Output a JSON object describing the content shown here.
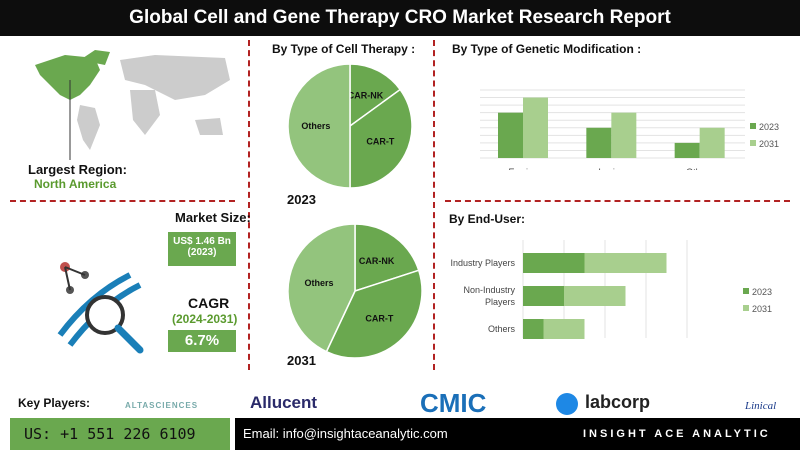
{
  "header": {
    "title": "Global Cell and Gene Therapy CRO Market Research Report"
  },
  "region": {
    "label": "Largest Region:",
    "value": "North America"
  },
  "market": {
    "label": "Market Size:",
    "value": "US$ 1.46 Bn",
    "year": "(2023)"
  },
  "cagr": {
    "label": "CAGR",
    "period": "(2024-2031)",
    "value": "6.7%"
  },
  "colors": {
    "dark_green": "#6aa84f",
    "light_green": "#a8cf8e",
    "pie_mid": "#93c47d",
    "accent_red": "#b22222"
  },
  "chart_data": [
    {
      "type": "pie",
      "title": "By  Type of Cell Therapy :",
      "year_label": "2023",
      "slices": [
        {
          "label": "CAR-NK",
          "value": 15
        },
        {
          "label": "CAR-T",
          "value": 35
        },
        {
          "label": "Others",
          "value": 50
        }
      ]
    },
    {
      "type": "pie",
      "year_label": "2031",
      "slices": [
        {
          "label": "CAR-NK",
          "value": 20
        },
        {
          "label": "CAR-T",
          "value": 37
        },
        {
          "label": "Others",
          "value": 43
        }
      ]
    },
    {
      "type": "bar",
      "title": "By  Type of Genetic Modification :",
      "categories": [
        "Ex vivo",
        "In vivo",
        "Others"
      ],
      "series": [
        {
          "name": "2023",
          "values": [
            6,
            4,
            2
          ]
        },
        {
          "name": "2031",
          "values": [
            8,
            6,
            4
          ]
        }
      ],
      "ylim": [
        0,
        9
      ],
      "grid": true,
      "legend": "right"
    },
    {
      "type": "bar",
      "orientation": "horizontal-stacked",
      "title": "By End-User:",
      "categories": [
        "Industry Players",
        "Non-Industry Players",
        "Others"
      ],
      "series": [
        {
          "name": "2023",
          "values": [
            3,
            2,
            1
          ]
        },
        {
          "name": "2031",
          "values": [
            4,
            3,
            2
          ]
        }
      ],
      "xlim": [
        0,
        8
      ],
      "grid": true,
      "legend": "right"
    }
  ],
  "footer": {
    "key_players_label": "Key Players:",
    "players": [
      "ALTASCIENCES",
      "Allucent",
      "CMIC",
      "labcorp",
      "Linical"
    ],
    "phone": "US: +1 551 226 6109",
    "email": "Email: info@insightaceanalytic.com",
    "brand": "INSIGHT ACE ANALYTIC"
  }
}
